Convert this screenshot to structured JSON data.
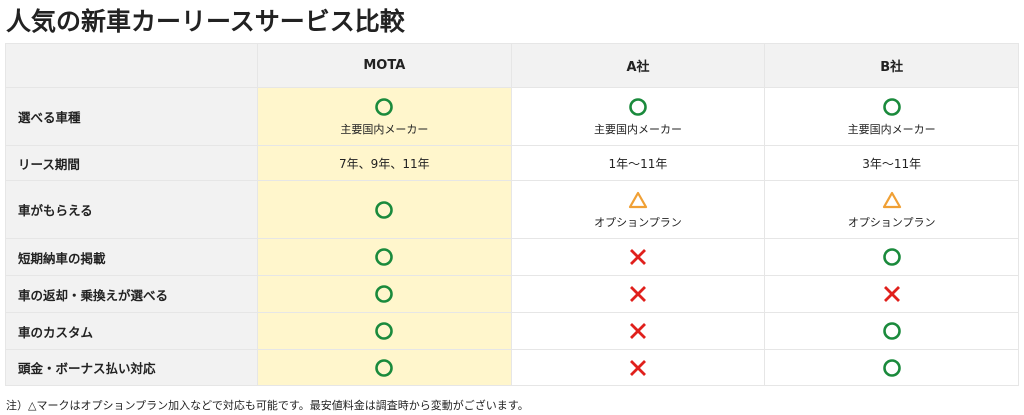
{
  "title": "人気の新車カーリースサービス比較",
  "colors": {
    "circle": "#1a8a3c",
    "cross": "#e0201c",
    "triangle": "#f0a035",
    "highlight": "#fff6cc",
    "header_bg": "#f2f2f2"
  },
  "columns": [
    "",
    "MOTA",
    "A社",
    "B社"
  ],
  "rows": [
    {
      "label": "選べる車種",
      "cells": [
        {
          "mark": "circle",
          "text": "主要国内メーカー"
        },
        {
          "mark": "circle",
          "text": "主要国内メーカー"
        },
        {
          "mark": "circle",
          "text": "主要国内メーカー"
        }
      ]
    },
    {
      "label": "リース期間",
      "cells": [
        {
          "mark": "",
          "text": "7年、9年、11年"
        },
        {
          "mark": "",
          "text": "1年〜11年"
        },
        {
          "mark": "",
          "text": "3年〜11年"
        }
      ]
    },
    {
      "label": "車がもらえる",
      "cells": [
        {
          "mark": "circle",
          "text": ""
        },
        {
          "mark": "triangle",
          "text": "オプションプラン"
        },
        {
          "mark": "triangle",
          "text": "オプションプラン"
        }
      ]
    },
    {
      "label": "短期納車の掲載",
      "cells": [
        {
          "mark": "circle",
          "text": ""
        },
        {
          "mark": "cross",
          "text": ""
        },
        {
          "mark": "circle",
          "text": ""
        }
      ]
    },
    {
      "label": "車の返却・乗換えが選べる",
      "cells": [
        {
          "mark": "circle",
          "text": ""
        },
        {
          "mark": "cross",
          "text": ""
        },
        {
          "mark": "cross",
          "text": ""
        }
      ]
    },
    {
      "label": "車のカスタム",
      "cells": [
        {
          "mark": "circle",
          "text": ""
        },
        {
          "mark": "cross",
          "text": ""
        },
        {
          "mark": "circle",
          "text": ""
        }
      ]
    },
    {
      "label": "頭金・ボーナス払い対応",
      "cells": [
        {
          "mark": "circle",
          "text": ""
        },
        {
          "mark": "cross",
          "text": ""
        },
        {
          "mark": "circle",
          "text": ""
        }
      ]
    }
  ],
  "note": "注）△マークはオプションプラン加入などで対応も可能です。最安値料金は調査時から変動がございます。"
}
